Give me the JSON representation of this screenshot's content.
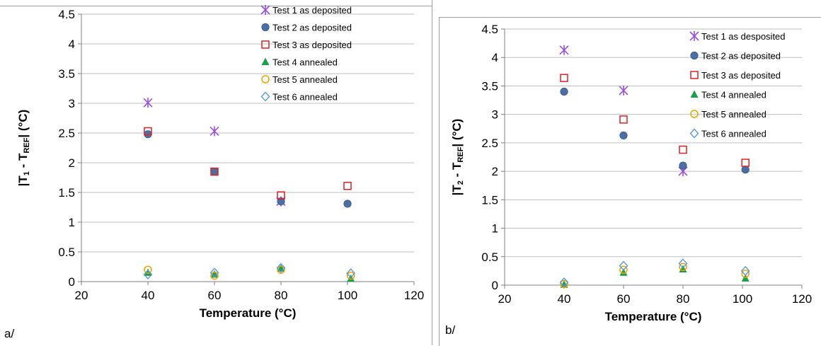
{
  "chart_data": [
    {
      "type": "scatter",
      "panel_label": "a/",
      "xlabel": "Temperature (°C)",
      "ylabel": {
        "pre": "|T",
        "sub1": "1",
        "mid": " - T",
        "sub2": "REF",
        "post": "| (°C)"
      },
      "xlim": [
        20,
        120
      ],
      "ylim": [
        0,
        4.5
      ],
      "xticks": [
        "20",
        "40",
        "60",
        "80",
        "100",
        "120"
      ],
      "yticks": [
        "0",
        "0.5",
        "1",
        "1.5",
        "2",
        "2.5",
        "3",
        "3.5",
        "4",
        "4.5"
      ],
      "grid": "horizontal",
      "legend_position": "top-right",
      "series": [
        {
          "name": "Test 1 as deposited",
          "marker": "star",
          "color": "#9b4de0",
          "x": [
            40,
            60,
            80
          ],
          "y": [
            3.01,
            2.53,
            1.35
          ]
        },
        {
          "name": "Test 2 as deposited",
          "marker": "filled-circle",
          "color": "#4a6fa5",
          "x": [
            40,
            60,
            80,
            100
          ],
          "y": [
            2.48,
            1.85,
            1.35,
            1.31
          ]
        },
        {
          "name": "Test 3 as deposited",
          "marker": "open-square",
          "color": "#e02020",
          "x": [
            40,
            60,
            80,
            100
          ],
          "y": [
            2.53,
            1.85,
            1.45,
            1.61
          ]
        },
        {
          "name": "Test 4 annealed",
          "marker": "filled-triangle",
          "color": "#1aa04a",
          "x": [
            40,
            60,
            80,
            101
          ],
          "y": [
            0.15,
            0.12,
            0.22,
            0.05
          ]
        },
        {
          "name": "Test 5 annealed",
          "marker": "open-circle",
          "color": "#f0a000",
          "x": [
            40,
            60,
            80,
            101
          ],
          "y": [
            0.2,
            0.1,
            0.2,
            0.1
          ]
        },
        {
          "name": "Test 6 annealed",
          "marker": "open-diamond",
          "color": "#5b9bd5",
          "x": [
            40,
            60,
            80,
            101
          ],
          "y": [
            0.12,
            0.15,
            0.23,
            0.14
          ]
        }
      ]
    },
    {
      "type": "scatter",
      "panel_label": "b/",
      "xlabel": "Temperature (°C)",
      "ylabel": {
        "pre": "|T",
        "sub1": "2",
        "mid": " - T",
        "sub2": "REF",
        "post": "| (°C)"
      },
      "xlim": [
        20,
        120
      ],
      "ylim": [
        0,
        4.5
      ],
      "xticks": [
        "20",
        "40",
        "60",
        "80",
        "100",
        "120"
      ],
      "yticks": [
        "0",
        "0.5",
        "1",
        "1.5",
        "2",
        "2.5",
        "3",
        "3.5",
        "4",
        "4.5"
      ],
      "grid": "horizontal",
      "legend_position": "top-right",
      "series": [
        {
          "name": "Test 1 as desposited",
          "marker": "star",
          "color": "#9b4de0",
          "x": [
            40,
            60,
            80
          ],
          "y": [
            4.13,
            3.42,
            2.0
          ]
        },
        {
          "name": "Test 2 as deposited",
          "marker": "filled-circle",
          "color": "#4a6fa5",
          "x": [
            40,
            60,
            80,
            101
          ],
          "y": [
            3.4,
            2.63,
            2.1,
            2.03
          ]
        },
        {
          "name": "Test 3 as deposited",
          "marker": "open-square",
          "color": "#e02020",
          "x": [
            40,
            60,
            80,
            101
          ],
          "y": [
            3.64,
            2.91,
            2.38,
            2.15
          ]
        },
        {
          "name": "Test 4 annealed",
          "marker": "filled-triangle",
          "color": "#1aa04a",
          "x": [
            40,
            60,
            80,
            101
          ],
          "y": [
            0.01,
            0.22,
            0.28,
            0.12
          ]
        },
        {
          "name": "Test 5 annealed",
          "marker": "open-circle",
          "color": "#f0a000",
          "x": [
            40,
            60,
            80,
            101
          ],
          "y": [
            0.02,
            0.27,
            0.32,
            0.2
          ]
        },
        {
          "name": "Test 6 annealed",
          "marker": "open-diamond",
          "color": "#5b9bd5",
          "x": [
            40,
            60,
            80,
            101
          ],
          "y": [
            0.05,
            0.34,
            0.38,
            0.25
          ]
        }
      ]
    }
  ]
}
